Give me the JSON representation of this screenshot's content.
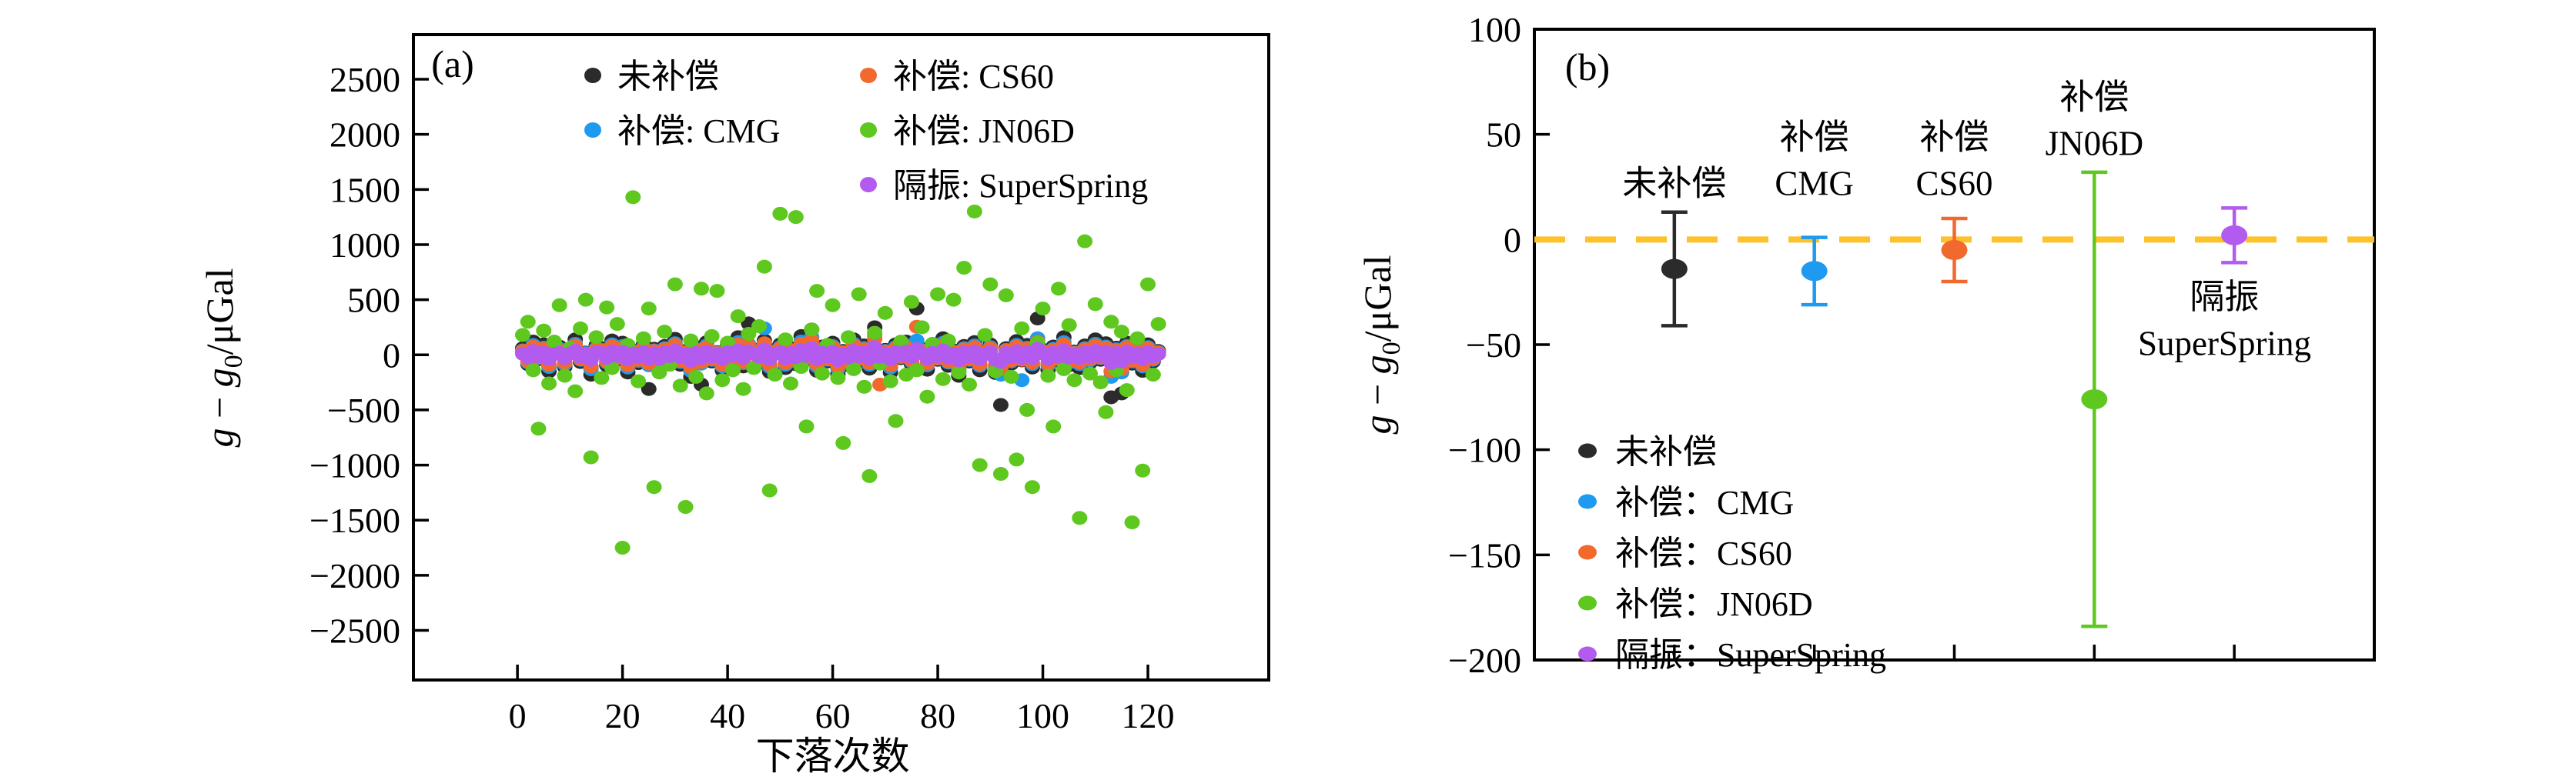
{
  "page": {
    "background": "#ffffff"
  },
  "chart_data": [
    {
      "id": "a",
      "type": "scatter",
      "panel_label": "(a)",
      "xlabel": "下落次数",
      "ylabel": "g − g0/μGal",
      "ylabel_parts": [
        {
          "t": "g",
          "italic": true
        },
        {
          "t": " − "
        },
        {
          "t": "g",
          "italic": true
        },
        {
          "t": "0",
          "sub": true
        },
        {
          "t": "/μGal"
        }
      ],
      "xlim": [
        -19.8,
        143
      ],
      "ylim": [
        -2950,
        2905
      ],
      "xticks": [
        0,
        20,
        40,
        60,
        80,
        100,
        120
      ],
      "yticks": [
        2500,
        2000,
        1500,
        1000,
        500,
        0,
        -500,
        -1000,
        -1500,
        -2000,
        -2500
      ],
      "grid": false,
      "legend_position": "top-inside",
      "x_start": 1,
      "x_step": 1,
      "legend": {
        "columns": [
          [
            "uncompensated",
            "cmg"
          ],
          [
            "cs60",
            "jn06d",
            "superspring"
          ]
        ]
      },
      "series": [
        {
          "key": "uncompensated",
          "name": "未补偿",
          "color": "#2b2b2b",
          "y": [
            60,
            -85,
            120,
            -40,
            95,
            -150,
            30,
            75,
            -110,
            45,
            140,
            -65,
            20,
            -180,
            85,
            60,
            -95,
            130,
            -45,
            110,
            -160,
            40,
            -75,
            95,
            -310,
            55,
            -130,
            80,
            -50,
            145,
            -90,
            35,
            -200,
            70,
            -270,
            115,
            -60,
            25,
            -140,
            90,
            -35,
            160,
            -105,
            285,
            50,
            -75,
            130,
            -155,
            45,
            95,
            -120,
            60,
            -85,
            170,
            -40,
            230,
            -145,
            75,
            -60,
            110,
            -175,
            35,
            -95,
            140,
            -55,
            85,
            -125,
            250,
            -70,
            45,
            -160,
            95,
            -30,
            120,
            -85,
            420,
            55,
            -135,
            70,
            -45,
            150,
            -100,
            40,
            -190,
            80,
            -60,
            115,
            -140,
            35,
            95,
            -165,
            -455,
            60,
            -80,
            125,
            -50,
            90,
            -115,
            330,
            45,
            -135,
            75,
            -55,
            160,
            -95,
            30,
            -120,
            85,
            -70,
            140,
            -45,
            105,
            -385,
            65,
            -350,
            110,
            -80,
            50,
            -145,
            95,
            -60,
            35
          ]
        },
        {
          "key": "cmg",
          "name": "补偿: CMG",
          "color": "#1e9af0",
          "y": [
            40,
            -70,
            90,
            -30,
            65,
            -110,
            25,
            55,
            -85,
            35,
            100,
            -45,
            15,
            -130,
            60,
            45,
            -70,
            95,
            -30,
            80,
            -115,
            30,
            -55,
            70,
            -95,
            40,
            -100,
            60,
            -35,
            105,
            -65,
            25,
            -145,
            50,
            -80,
            85,
            -45,
            20,
            -105,
            65,
            -25,
            115,
            -75,
            95,
            35,
            -55,
            240,
            -110,
            30,
            70,
            -90,
            45,
            -60,
            120,
            -30,
            160,
            -105,
            55,
            -45,
            80,
            -125,
            25,
            -70,
            100,
            -40,
            60,
            -90,
            180,
            -50,
            35,
            -115,
            70,
            -20,
            85,
            -60,
            130,
            40,
            -95,
            50,
            -35,
            110,
            -70,
            30,
            -140,
            60,
            -45,
            85,
            -100,
            25,
            70,
            -120,
            -180,
            45,
            -60,
            90,
            -230,
            65,
            -85,
            150,
            35,
            -95,
            55,
            -40,
            115,
            -70,
            20,
            -85,
            60,
            -50,
            100,
            -30,
            75,
            -200,
            50,
            -160,
            80,
            -60,
            35,
            -105,
            70,
            -45,
            25
          ]
        },
        {
          "key": "cs60",
          "name": "补偿: CS60",
          "color": "#f2692e",
          "y": [
            35,
            -60,
            75,
            -25,
            55,
            -90,
            20,
            45,
            -70,
            30,
            85,
            -40,
            10,
            -105,
            50,
            40,
            -60,
            80,
            -25,
            65,
            -95,
            25,
            -45,
            60,
            -80,
            35,
            -85,
            50,
            -30,
            90,
            -55,
            20,
            -115,
            45,
            -65,
            70,
            -40,
            15,
            -90,
            55,
            -20,
            95,
            -65,
            80,
            30,
            -45,
            105,
            -90,
            25,
            60,
            -75,
            40,
            -50,
            100,
            -25,
            130,
            -85,
            45,
            -40,
            70,
            -105,
            20,
            -60,
            85,
            -35,
            50,
            -75,
            145,
            -270,
            30,
            -95,
            60,
            -15,
            70,
            -50,
            255,
            35,
            -80,
            45,
            -30,
            90,
            -60,
            25,
            -115,
            50,
            -40,
            70,
            -85,
            20,
            60,
            -100,
            -130,
            40,
            -50,
            75,
            -45,
            55,
            -70,
            120,
            30,
            -80,
            45,
            -35,
            95,
            -60,
            15,
            -70,
            50,
            -40,
            85,
            -25,
            65,
            -150,
            40,
            -130,
            70,
            -50,
            30,
            -90,
            60,
            -35,
            20
          ]
        },
        {
          "key": "jn06d",
          "name": "补偿: JN06D",
          "color": "#5ec81f",
          "y": [
            180,
            300,
            -140,
            -670,
            220,
            -260,
            120,
            450,
            -190,
            60,
            -330,
            240,
            500,
            -930,
            160,
            -210,
            430,
            -120,
            280,
            -1750,
            90,
            1430,
            -240,
            150,
            420,
            -1200,
            -160,
            210,
            -90,
            640,
            -280,
            -1380,
            130,
            -200,
            600,
            -350,
            170,
            580,
            -230,
            110,
            -140,
            350,
            -310,
            190,
            -120,
            260,
            800,
            -1230,
            -180,
            1280,
            140,
            -260,
            1250,
            -110,
            -650,
            230,
            580,
            -170,
            90,
            450,
            -210,
            -800,
            160,
            -130,
            550,
            -290,
            -1100,
            200,
            -80,
            380,
            -240,
            -600,
            120,
            -180,
            480,
            -140,
            250,
            -380,
            100,
            550,
            -220,
            130,
            500,
            -160,
            790,
            -270,
            1300,
            -1000,
            180,
            640,
            -150,
            -1080,
            540,
            -200,
            -950,
            240,
            -500,
            -1200,
            110,
            420,
            -190,
            -650,
            600,
            -130,
            270,
            -230,
            -1480,
            1030,
            -170,
            460,
            -250,
            -520,
            300,
            -140,
            210,
            -320,
            -1520,
            150,
            -1050,
            640,
            -180,
            280
          ]
        },
        {
          "key": "superspring",
          "name": "隔振: SuperSpring",
          "color": "#b35bef",
          "y": [
            10,
            -25,
            35,
            -15,
            20,
            -40,
            8,
            18,
            -30,
            12,
            38,
            -18,
            5,
            -45,
            22,
            15,
            -28,
            32,
            -10,
            26,
            -42,
            12,
            -20,
            24,
            -35,
            14,
            -38,
            20,
            -12,
            40,
            -22,
            8,
            -55,
            18,
            -30,
            28,
            -16,
            6,
            -38,
            22,
            -8,
            42,
            -26,
            32,
            12,
            -18,
            48,
            -40,
            10,
            25,
            -32,
            16,
            -22,
            45,
            -10,
            60,
            -38,
            20,
            -15,
            28,
            -48,
            8,
            -25,
            36,
            -14,
            22,
            -32,
            70,
            -18,
            12,
            -42,
            25,
            -6,
            30,
            -20,
            52,
            14,
            -35,
            18,
            -12,
            40,
            -25,
            10,
            -50,
            22,
            -16,
            30,
            -38,
            8,
            25,
            -45,
            -65,
            16,
            -20,
            33,
            -28,
            24,
            -30,
            55,
            12,
            -35,
            20,
            -14,
            42,
            -25,
            6,
            -30,
            22,
            -18,
            36,
            -10,
            28,
            -75,
            18,
            -60,
            30,
            -22,
            12,
            -38,
            25,
            -15,
            8
          ]
        }
      ]
    },
    {
      "id": "b",
      "type": "errorbar",
      "panel_label": "(b)",
      "ylabel": "g − g0/μGal",
      "ylabel_parts": [
        {
          "t": "g",
          "italic": true
        },
        {
          "t": " − "
        },
        {
          "t": "g",
          "italic": true
        },
        {
          "t": "0",
          "sub": true
        },
        {
          "t": "/μGal"
        }
      ],
      "xlim": [
        0,
        6
      ],
      "ylim": [
        -200,
        100
      ],
      "yticks": [
        100,
        50,
        0,
        -50,
        -100,
        -150,
        -200
      ],
      "grid": false,
      "reference_line": {
        "y": 0,
        "style": "dashed",
        "color": "#fcc12b"
      },
      "points": [
        {
          "key": "uncompensated",
          "label": "未补偿",
          "x": 1,
          "mean": -14,
          "err": 27,
          "color": "#2b2b2b"
        },
        {
          "key": "cmg",
          "label": "补偿：CMG",
          "x": 2,
          "mean": -15,
          "err": 16,
          "color": "#1e9af0"
        },
        {
          "key": "cs60",
          "label": "补偿：CS60",
          "x": 3,
          "mean": -5,
          "err": 15,
          "color": "#f2692e"
        },
        {
          "key": "jn06d",
          "label": "补偿：JN06D",
          "x": 4,
          "mean": -76,
          "err": 108,
          "color": "#5ec81f"
        },
        {
          "key": "superspring",
          "label": "隔振：SuperSpring",
          "x": 5,
          "mean": 2,
          "err": 13,
          "color": "#b35bef"
        }
      ],
      "annotations": [
        {
          "lines": [
            "未补偿"
          ],
          "x": 1,
          "y": 27
        },
        {
          "lines": [
            "补偿",
            "CMG"
          ],
          "x": 2,
          "y": 49
        },
        {
          "lines": [
            "补偿",
            "CS60"
          ],
          "x": 3,
          "y": 49
        },
        {
          "lines": [
            "补偿",
            "JN06D"
          ],
          "x": 4,
          "y": 68
        },
        {
          "lines": [
            "隔振",
            "SuperSpring"
          ],
          "x": 4.93,
          "y": -27
        }
      ],
      "legend": {
        "items": [
          {
            "key": "uncompensated",
            "label": "未补偿",
            "color": "#2b2b2b"
          },
          {
            "key": "cmg",
            "label": "补偿：CMG",
            "color": "#1e9af0"
          },
          {
            "key": "cs60",
            "label": "补偿：CS60",
            "color": "#f2692e"
          },
          {
            "key": "jn06d",
            "label": "补偿：JN06D",
            "color": "#5ec81f"
          },
          {
            "key": "superspring",
            "label": "隔振：SuperSpring",
            "color": "#b35bef"
          }
        ]
      }
    }
  ]
}
